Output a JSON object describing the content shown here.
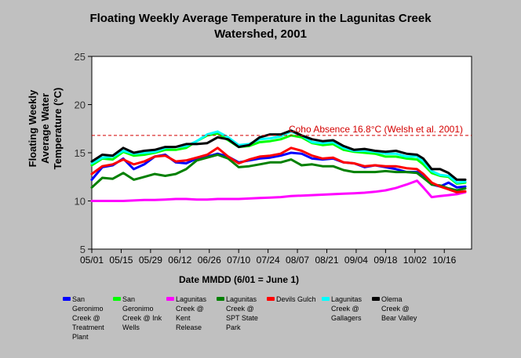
{
  "chart_data": {
    "type": "line",
    "title": "Floating Weekly Average Temperature in the Lagunitas Creek Watershed, 2001",
    "title_lines": [
      "Floating Weekly Average Temperature in the Lagunitas Creek",
      "Watershed, 2001"
    ],
    "ylabel": "Floating Weekly Average Water Temperature (°C)",
    "ylabel_lines": [
      "Floating Weekly",
      "Average Water",
      "Temperature (°C)"
    ],
    "xlabel": "Date MMDD (6/01 = June 1)",
    "ylim": [
      5,
      25
    ],
    "yticks": [
      5,
      10,
      15,
      20,
      25
    ],
    "xlim": [
      "05/01",
      "10/29"
    ],
    "xticks": [
      "05/01",
      "05/15",
      "05/29",
      "06/12",
      "06/26",
      "07/10",
      "07/24",
      "08/07",
      "08/21",
      "09/04",
      "09/18",
      "10/02",
      "10/16"
    ],
    "grid": false,
    "legend_position": "bottom",
    "reference_line": {
      "value": 16.8,
      "label": "Coho Absence 16.8°C (Welsh et al. 2001)",
      "color": "#d40000"
    },
    "x": [
      "05/01",
      "05/06",
      "05/11",
      "05/16",
      "05/21",
      "05/26",
      "05/31",
      "06/05",
      "06/10",
      "06/15",
      "06/20",
      "06/25",
      "06/30",
      "07/05",
      "07/10",
      "07/15",
      "07/20",
      "07/25",
      "07/30",
      "08/04",
      "08/09",
      "08/14",
      "08/19",
      "08/24",
      "08/29",
      "09/03",
      "09/08",
      "09/13",
      "09/18",
      "09/23",
      "09/28",
      "10/03",
      "10/06",
      "10/10",
      "10/14",
      "10/18",
      "10/22",
      "10/26"
    ],
    "series": [
      {
        "name": "San Geronimo Creek @ Treatment Plant",
        "color": "#0000ff",
        "values": [
          12.2,
          13.5,
          13.7,
          14.4,
          13.3,
          13.8,
          14.6,
          14.8,
          14.0,
          13.9,
          14.4,
          14.6,
          14.9,
          14.6,
          14.0,
          14.2,
          14.4,
          14.5,
          14.7,
          15.0,
          14.9,
          14.4,
          14.3,
          14.4,
          14.0,
          13.9,
          13.5,
          13.7,
          13.5,
          13.3,
          13.0,
          13.0,
          12.7,
          11.7,
          11.5,
          11.9,
          11.4,
          11.5
        ]
      },
      {
        "name": "San Geronimo Creek @ Ink Wells",
        "color": "#00ff00",
        "values": [
          13.7,
          14.4,
          14.3,
          15.1,
          14.7,
          14.8,
          15.0,
          15.3,
          15.3,
          15.5,
          16.2,
          16.8,
          17.0,
          16.3,
          15.6,
          15.7,
          16.1,
          16.2,
          16.4,
          16.8,
          16.6,
          16.0,
          15.8,
          15.9,
          15.3,
          15.1,
          15.0,
          14.9,
          14.6,
          14.6,
          14.4,
          14.3,
          13.8,
          12.9,
          12.6,
          12.5,
          11.8,
          11.9
        ]
      },
      {
        "name": "Lagunitas Creek @ Kent Release",
        "color": "#ff00ff",
        "values": [
          10.0,
          10.0,
          10.0,
          10.0,
          10.05,
          10.1,
          10.1,
          10.15,
          10.2,
          10.2,
          10.15,
          10.15,
          10.2,
          10.2,
          10.2,
          10.25,
          10.3,
          10.35,
          10.4,
          10.5,
          10.55,
          10.6,
          10.65,
          10.7,
          10.75,
          10.8,
          10.85,
          10.95,
          11.1,
          11.35,
          11.7,
          12.1,
          11.4,
          10.4,
          10.5,
          10.6,
          10.7,
          10.9
        ]
      },
      {
        "name": "Lagunitas Creek @ SPT State Park",
        "color": "#008000",
        "values": [
          11.4,
          12.4,
          12.3,
          12.9,
          12.2,
          12.5,
          12.8,
          12.6,
          12.8,
          13.3,
          14.2,
          14.5,
          14.8,
          14.4,
          13.5,
          13.6,
          13.8,
          14.0,
          14.0,
          14.3,
          13.7,
          13.8,
          13.6,
          13.6,
          13.2,
          13.0,
          13.0,
          13.0,
          13.1,
          13.0,
          13.0,
          12.9,
          12.4,
          11.7,
          11.6,
          11.3,
          11.1,
          11.3
        ]
      },
      {
        "name": "Devils Gulch",
        "color": "#ff0000",
        "values": [
          12.8,
          13.6,
          13.8,
          14.3,
          13.8,
          14.1,
          14.6,
          14.7,
          14.1,
          14.2,
          14.5,
          14.8,
          15.5,
          14.6,
          13.9,
          14.3,
          14.6,
          14.7,
          14.9,
          15.5,
          15.2,
          14.7,
          14.4,
          14.5,
          14.0,
          13.9,
          13.6,
          13.7,
          13.6,
          13.6,
          13.4,
          13.3,
          12.8,
          11.9,
          11.5,
          11.2,
          10.9,
          11.0
        ]
      },
      {
        "name": "Lagunitas Creek @ Gallagers",
        "color": "#00ffff",
        "values": [
          13.9,
          14.5,
          14.6,
          15.2,
          14.9,
          15.0,
          15.1,
          15.5,
          15.6,
          15.7,
          16.2,
          16.9,
          17.2,
          16.6,
          15.8,
          15.9,
          16.4,
          16.5,
          16.7,
          17.2,
          16.8,
          16.1,
          16.0,
          16.1,
          15.5,
          15.2,
          15.2,
          15.1,
          14.9,
          14.9,
          14.6,
          14.6,
          14.1,
          13.1,
          12.7,
          12.6,
          11.9,
          12.0
        ]
      },
      {
        "name": "Olema Creek @ Bear Valley",
        "color": "#000000",
        "values": [
          14.1,
          14.8,
          14.7,
          15.5,
          15.0,
          15.2,
          15.3,
          15.6,
          15.6,
          15.9,
          15.9,
          16.0,
          16.6,
          16.4,
          15.6,
          15.8,
          16.6,
          16.9,
          16.9,
          17.3,
          16.8,
          16.4,
          16.2,
          16.3,
          15.7,
          15.3,
          15.4,
          15.2,
          15.1,
          15.2,
          14.9,
          14.8,
          14.4,
          13.3,
          13.3,
          12.9,
          12.2,
          12.2
        ]
      }
    ],
    "legend": [
      [
        "San",
        "Geronimo",
        "Creek @",
        "Treatment",
        "Plant"
      ],
      [
        "San",
        "Geronimo",
        "Creek @ Ink",
        "Wells"
      ],
      [
        "Lagunitas",
        "Creek @",
        "Kent",
        "Release"
      ],
      [
        "Lagunitas",
        "Creek @",
        "SPT State",
        "Park"
      ],
      [
        "Devils Gulch"
      ],
      [
        "Lagunitas",
        "Creek @",
        "Gallagers"
      ],
      [
        "Olema",
        "Creek @",
        "Bear Valley"
      ]
    ]
  }
}
